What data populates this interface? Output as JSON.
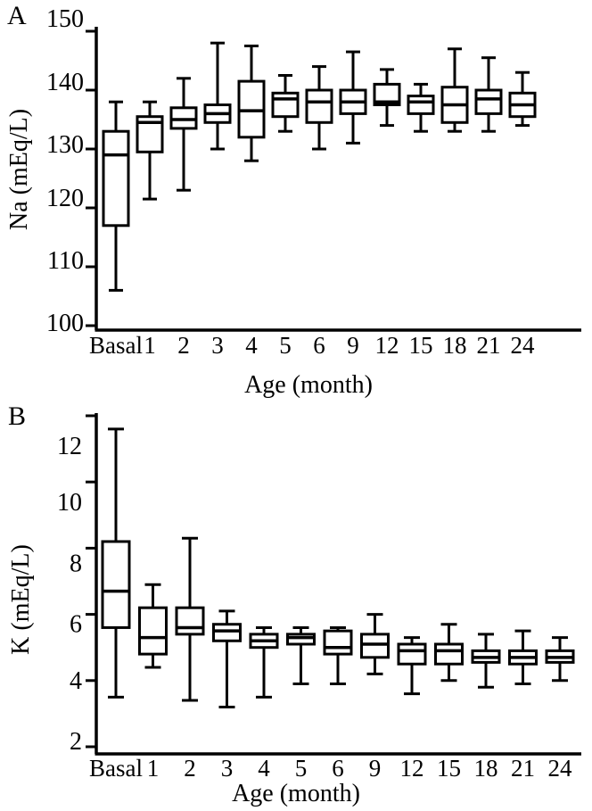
{
  "figure": {
    "background_color": "#ffffff",
    "ink_color": "#000000"
  },
  "chart_data": [
    {
      "type": "boxplot",
      "panel_label": "A",
      "ylabel": "Na (mEq/L)",
      "xlabel": "Age (month)",
      "ylim": [
        100,
        150
      ],
      "yticks": [
        150,
        140,
        130,
        120,
        110,
        100
      ],
      "grid": false,
      "legend": false,
      "categories": [
        "Basal",
        "1",
        "2",
        "3",
        "4",
        "5",
        "6",
        "9",
        "12",
        "15",
        "18",
        "21",
        "24"
      ],
      "series": [
        {
          "category": "Basal",
          "low": 106,
          "q1": 117,
          "median": 129,
          "q3": 133,
          "high": 138
        },
        {
          "category": "1",
          "low": 121.5,
          "q1": 129.5,
          "median": 134.5,
          "q3": 135.5,
          "high": 138
        },
        {
          "category": "2",
          "low": 123,
          "q1": 133.5,
          "median": 135,
          "q3": 137,
          "high": 142
        },
        {
          "category": "3",
          "low": 130,
          "q1": 134.5,
          "median": 136,
          "q3": 137.5,
          "high": 148
        },
        {
          "category": "4",
          "low": 128,
          "q1": 132,
          "median": 136.5,
          "q3": 141.5,
          "high": 147.5
        },
        {
          "category": "5",
          "low": 133,
          "q1": 135.5,
          "median": 138.5,
          "q3": 139.5,
          "high": 142.5
        },
        {
          "category": "6",
          "low": 130,
          "q1": 134.5,
          "median": 138,
          "q3": 140,
          "high": 144
        },
        {
          "category": "9",
          "low": 131,
          "q1": 136,
          "median": 138,
          "q3": 140,
          "high": 146.5
        },
        {
          "category": "12",
          "low": 134,
          "q1": 137.5,
          "median": 138,
          "q3": 141,
          "high": 143.5
        },
        {
          "category": "15",
          "low": 133,
          "q1": 136,
          "median": 138,
          "q3": 139,
          "high": 141
        },
        {
          "category": "18",
          "low": 133,
          "q1": 134.5,
          "median": 137.5,
          "q3": 140.5,
          "high": 147
        },
        {
          "category": "21",
          "low": 133,
          "q1": 136,
          "median": 138.5,
          "q3": 140,
          "high": 145.5
        },
        {
          "category": "24",
          "low": 134,
          "q1": 135.5,
          "median": 137.5,
          "q3": 139.5,
          "high": 143
        }
      ]
    },
    {
      "type": "boxplot",
      "panel_label": "B",
      "ylabel": "K (mEq/L)",
      "xlabel": "Age (month)",
      "ylim": [
        2,
        12
      ],
      "yticks": [
        12,
        10,
        8,
        6,
        4,
        2
      ],
      "grid": false,
      "legend": false,
      "categories": [
        "Basal",
        "1",
        "2",
        "3",
        "4",
        "5",
        "6",
        "9",
        "12",
        "15",
        "18",
        "21",
        "24"
      ],
      "series": [
        {
          "category": "Basal",
          "low": 3.5,
          "q1": 5.6,
          "median": 6.7,
          "q3": 8.2,
          "high": 11.6
        },
        {
          "category": "1",
          "low": 4.4,
          "q1": 4.8,
          "median": 5.3,
          "q3": 6.2,
          "high": 6.9
        },
        {
          "category": "2",
          "low": 3.4,
          "q1": 5.4,
          "median": 5.6,
          "q3": 6.2,
          "high": 8.3
        },
        {
          "category": "3",
          "low": 3.2,
          "q1": 5.2,
          "median": 5.5,
          "q3": 5.7,
          "high": 6.1
        },
        {
          "category": "4",
          "low": 3.5,
          "q1": 5.0,
          "median": 5.2,
          "q3": 5.4,
          "high": 5.6
        },
        {
          "category": "5",
          "low": 3.9,
          "q1": 5.1,
          "median": 5.3,
          "q3": 5.4,
          "high": 5.6
        },
        {
          "category": "6",
          "low": 3.9,
          "q1": 4.8,
          "median": 5.0,
          "q3": 5.5,
          "high": 5.6
        },
        {
          "category": "9",
          "low": 4.2,
          "q1": 4.7,
          "median": 5.1,
          "q3": 5.4,
          "high": 6.0
        },
        {
          "category": "12",
          "low": 3.6,
          "q1": 4.5,
          "median": 4.9,
          "q3": 5.1,
          "high": 5.3
        },
        {
          "category": "15",
          "low": 4.0,
          "q1": 4.5,
          "median": 4.9,
          "q3": 5.1,
          "high": 5.7
        },
        {
          "category": "18",
          "low": 3.8,
          "q1": 4.55,
          "median": 4.7,
          "q3": 4.9,
          "high": 5.4
        },
        {
          "category": "21",
          "low": 3.9,
          "q1": 4.5,
          "median": 4.7,
          "q3": 4.9,
          "high": 5.5
        },
        {
          "category": "24",
          "low": 4.0,
          "q1": 4.55,
          "median": 4.7,
          "q3": 4.9,
          "high": 5.3
        }
      ]
    }
  ]
}
